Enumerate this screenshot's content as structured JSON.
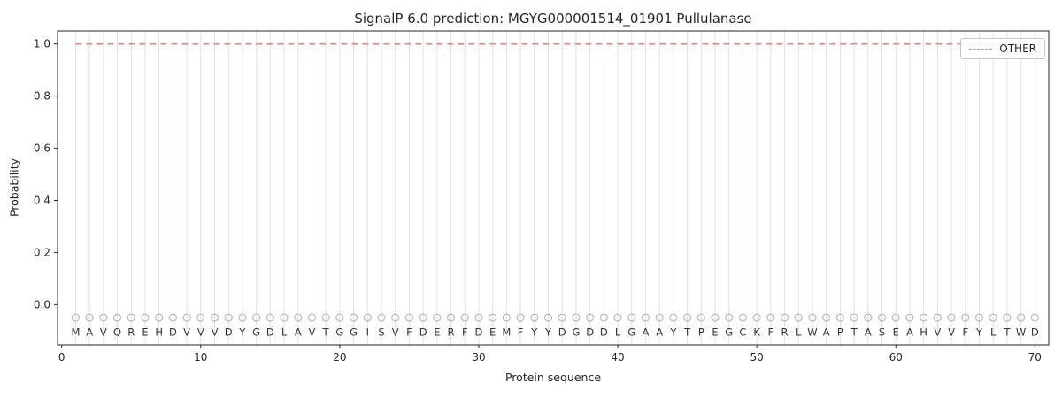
{
  "figure": {
    "title": "SignalP 6.0 prediction: MGYG000001514_01901 Pullulanase",
    "xlabel": "Protein sequence",
    "ylabel": "Probability",
    "legend_label": "OTHER"
  },
  "colors": {
    "other_line": "#f08080",
    "gridline": "#e2e2e2",
    "residue_marker": "#b0b0b0",
    "axis": "#262626",
    "residue_letter": "#333333",
    "background": "#ffffff",
    "legend_border": "#c8c8c8"
  },
  "chart_data": {
    "type": "line",
    "title": "SignalP 6.0 prediction: MGYG000001514_01901 Pullulanase",
    "xlabel": "Protein sequence",
    "ylabel": "Probability",
    "sequence": "MAVQREHDVVVDYGDLAVTGGISVFDERFDEMFYYDGDDLGAAYTPEGCKFRLWAPTASEAHVVFYLTWD",
    "xticks": [
      0,
      10,
      20,
      30,
      40,
      50,
      60,
      70
    ],
    "yticks": [
      0.0,
      0.2,
      0.4,
      0.6,
      0.8,
      1.0
    ],
    "xlim": [
      -0.3,
      71
    ],
    "ylim": [
      -0.155,
      1.05
    ],
    "grid": {
      "vertical_per_residue": true,
      "color": "#e2e2e2"
    },
    "residue_markers": {
      "shape": "open-circle",
      "y": -0.05,
      "color": "#b0b0b0"
    },
    "legend": {
      "position": "upper-right",
      "entries": [
        "OTHER"
      ]
    },
    "series": [
      {
        "name": "OTHER",
        "color": "#f08080",
        "linestyle": "dashed",
        "x": [
          1,
          2,
          3,
          4,
          5,
          6,
          7,
          8,
          9,
          10,
          11,
          12,
          13,
          14,
          15,
          16,
          17,
          18,
          19,
          20,
          21,
          22,
          23,
          24,
          25,
          26,
          27,
          28,
          29,
          30,
          31,
          32,
          33,
          34,
          35,
          36,
          37,
          38,
          39,
          40,
          41,
          42,
          43,
          44,
          45,
          46,
          47,
          48,
          49,
          50,
          51,
          52,
          53,
          54,
          55,
          56,
          57,
          58,
          59,
          60,
          61,
          62,
          63,
          64,
          65,
          66,
          67,
          68,
          69,
          70
        ],
        "values": [
          1.0,
          1.0,
          1.0,
          1.0,
          1.0,
          1.0,
          1.0,
          1.0,
          1.0,
          1.0,
          1.0,
          1.0,
          1.0,
          1.0,
          1.0,
          1.0,
          1.0,
          1.0,
          1.0,
          1.0,
          1.0,
          1.0,
          1.0,
          1.0,
          1.0,
          1.0,
          1.0,
          1.0,
          1.0,
          1.0,
          1.0,
          1.0,
          1.0,
          1.0,
          1.0,
          1.0,
          1.0,
          1.0,
          1.0,
          1.0,
          1.0,
          1.0,
          1.0,
          1.0,
          1.0,
          1.0,
          1.0,
          1.0,
          1.0,
          1.0,
          1.0,
          1.0,
          1.0,
          1.0,
          1.0,
          1.0,
          1.0,
          1.0,
          1.0,
          1.0,
          1.0,
          1.0,
          1.0,
          1.0,
          1.0,
          1.0,
          1.0,
          1.0,
          1.0,
          1.0
        ]
      }
    ]
  }
}
